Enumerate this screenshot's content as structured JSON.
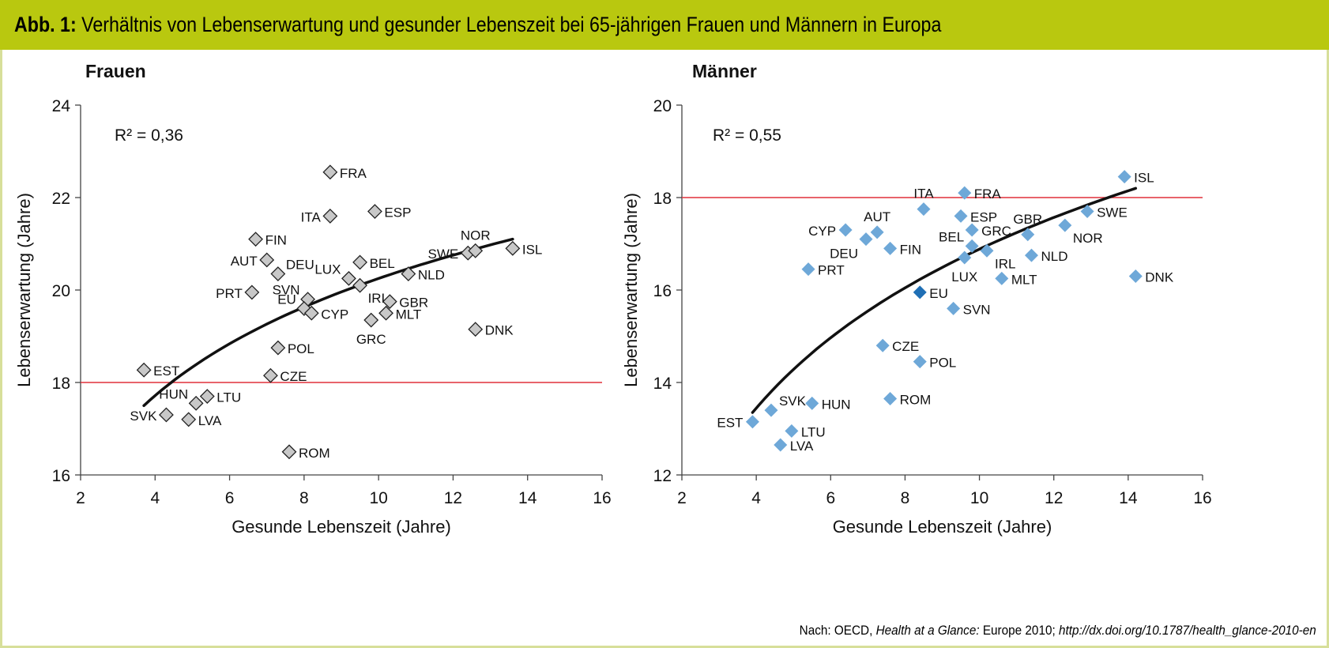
{
  "title": {
    "prefix": "Abb. 1:",
    "text": "Verhältnis von Lebenserwartung und gesunder Lebenszeit bei 65-jährigen Frauen und Männern in Europa"
  },
  "source": {
    "prefix": "Nach: OECD, ",
    "publication": "Health at a Glance:",
    "middle": " Europe 2010; ",
    "link": "http://dx.doi.org/10.1787/health_glance-2010-en"
  },
  "colors": {
    "title_bar": "#b9c80f",
    "frame": "#d7df9a",
    "female_marker": "#c8c8c8",
    "male_marker": "#6ea8d8",
    "eu_male_marker": "#1f6fb5",
    "reference_line": "#e0303a"
  },
  "chart_data": [
    {
      "type": "scatter",
      "title": "Frauen",
      "xlabel": "Gesunde Lebenszeit (Jahre)",
      "ylabel": "Lebenserwartung (Jahre)",
      "xlim": [
        2,
        16
      ],
      "ylim": [
        16,
        24
      ],
      "xticks": [
        2,
        4,
        6,
        8,
        10,
        12,
        14,
        16
      ],
      "yticks": [
        16,
        18,
        20,
        22,
        24
      ],
      "reference_line_y": 18,
      "r2_label": "R² = 0,36",
      "trend": {
        "type": "log",
        "x_range": [
          3.7,
          13.6
        ],
        "points": [
          [
            3.7,
            17.5
          ],
          [
            13.6,
            21.1
          ]
        ]
      },
      "points": [
        {
          "label": "EST",
          "x": 3.7,
          "y": 18.27,
          "label_pos": "right"
        },
        {
          "label": "SVK",
          "x": 4.3,
          "y": 17.3,
          "label_pos": "left"
        },
        {
          "label": "HUN",
          "x": 5.1,
          "y": 17.55,
          "label_pos": "left-up"
        },
        {
          "label": "LTU",
          "x": 5.4,
          "y": 17.7,
          "label_pos": "right"
        },
        {
          "label": "LVA",
          "x": 4.9,
          "y": 17.2,
          "label_pos": "right"
        },
        {
          "label": "FRA",
          "x": 8.7,
          "y": 22.55,
          "label_pos": "right"
        },
        {
          "label": "ITA",
          "x": 8.7,
          "y": 21.6,
          "label_pos": "left"
        },
        {
          "label": "ESP",
          "x": 9.9,
          "y": 21.7,
          "label_pos": "right"
        },
        {
          "label": "FIN",
          "x": 6.7,
          "y": 21.1,
          "label_pos": "right"
        },
        {
          "label": "AUT",
          "x": 7.0,
          "y": 20.65,
          "label_pos": "left"
        },
        {
          "label": "DEU",
          "x": 7.3,
          "y": 20.35,
          "label_pos": "right-up"
        },
        {
          "label": "PRT",
          "x": 6.6,
          "y": 19.95,
          "label_pos": "left"
        },
        {
          "label": "SVN",
          "x": 8.1,
          "y": 19.8,
          "label_pos": "left-up"
        },
        {
          "label": "EU",
          "x": 8.0,
          "y": 19.6,
          "label_pos": "left-up"
        },
        {
          "label": "CYP",
          "x": 8.2,
          "y": 19.5,
          "label_pos": "right"
        },
        {
          "label": "LUX",
          "x": 9.2,
          "y": 20.25,
          "label_pos": "left-up"
        },
        {
          "label": "BEL",
          "x": 9.5,
          "y": 20.6,
          "label_pos": "right"
        },
        {
          "label": "IRL",
          "x": 9.5,
          "y": 20.1,
          "label_pos": "right-down"
        },
        {
          "label": "NLD",
          "x": 10.8,
          "y": 20.35,
          "label_pos": "right"
        },
        {
          "label": "SWE",
          "x": 12.4,
          "y": 20.8,
          "label_pos": "left"
        },
        {
          "label": "NOR",
          "x": 12.6,
          "y": 20.85,
          "label_pos": "up"
        },
        {
          "label": "ISL",
          "x": 13.6,
          "y": 20.9,
          "label_pos": "right"
        },
        {
          "label": "GBR",
          "x": 10.3,
          "y": 19.75,
          "label_pos": "right"
        },
        {
          "label": "MLT",
          "x": 10.2,
          "y": 19.5,
          "label_pos": "right"
        },
        {
          "label": "GRC",
          "x": 9.8,
          "y": 19.35,
          "label_pos": "down"
        },
        {
          "label": "DNK",
          "x": 12.6,
          "y": 19.15,
          "label_pos": "right"
        },
        {
          "label": "POL",
          "x": 7.3,
          "y": 18.75,
          "label_pos": "right"
        },
        {
          "label": "CZE",
          "x": 7.1,
          "y": 18.15,
          "label_pos": "right"
        },
        {
          "label": "ROM",
          "x": 7.6,
          "y": 16.5,
          "label_pos": "right"
        }
      ]
    },
    {
      "type": "scatter",
      "title": "Männer",
      "xlabel": "Gesunde Lebenszeit (Jahre)",
      "ylabel": "Lebenserwartung (Jahre)",
      "xlim": [
        2,
        16
      ],
      "ylim": [
        12,
        20
      ],
      "xticks": [
        2,
        4,
        6,
        8,
        10,
        12,
        14,
        16
      ],
      "yticks": [
        12,
        14,
        16,
        18,
        20
      ],
      "reference_line_y": 18,
      "r2_label": "R² = 0,55",
      "trend": {
        "type": "log",
        "x_range": [
          3.9,
          14.2
        ],
        "points": [
          [
            3.9,
            13.35
          ],
          [
            14.2,
            18.2
          ]
        ]
      },
      "points": [
        {
          "label": "EST",
          "x": 3.9,
          "y": 13.15,
          "label_pos": "left"
        },
        {
          "label": "SVK",
          "x": 4.4,
          "y": 13.4,
          "label_pos": "right-up"
        },
        {
          "label": "HUN",
          "x": 5.5,
          "y": 13.55,
          "label_pos": "right"
        },
        {
          "label": "LTU",
          "x": 4.95,
          "y": 12.95,
          "label_pos": "right"
        },
        {
          "label": "LVA",
          "x": 4.65,
          "y": 12.65,
          "label_pos": "right"
        },
        {
          "label": "ROM",
          "x": 7.6,
          "y": 13.65,
          "label_pos": "right"
        },
        {
          "label": "POL",
          "x": 8.4,
          "y": 14.45,
          "label_pos": "right"
        },
        {
          "label": "CZE",
          "x": 7.4,
          "y": 14.8,
          "label_pos": "right"
        },
        {
          "label": "EU",
          "x": 8.4,
          "y": 15.95,
          "label_pos": "right",
          "highlight": true
        },
        {
          "label": "SVN",
          "x": 9.3,
          "y": 15.6,
          "label_pos": "right"
        },
        {
          "label": "PRT",
          "x": 5.4,
          "y": 16.45,
          "label_pos": "right"
        },
        {
          "label": "CYP",
          "x": 6.4,
          "y": 17.3,
          "label_pos": "left"
        },
        {
          "label": "AUT",
          "x": 7.25,
          "y": 17.25,
          "label_pos": "up"
        },
        {
          "label": "DEU",
          "x": 6.95,
          "y": 17.1,
          "label_pos": "left-down"
        },
        {
          "label": "FIN",
          "x": 7.6,
          "y": 16.9,
          "label_pos": "right"
        },
        {
          "label": "ITA",
          "x": 8.5,
          "y": 17.75,
          "label_pos": "up"
        },
        {
          "label": "FRA",
          "x": 9.6,
          "y": 18.1,
          "label_pos": "right"
        },
        {
          "label": "ESP",
          "x": 9.5,
          "y": 17.6,
          "label_pos": "right"
        },
        {
          "label": "GRC",
          "x": 9.8,
          "y": 17.3,
          "label_pos": "right"
        },
        {
          "label": "BEL",
          "x": 9.8,
          "y": 16.95,
          "label_pos": "left-up"
        },
        {
          "label": "IRL",
          "x": 10.2,
          "y": 16.85,
          "label_pos": "right-down"
        },
        {
          "label": "LUX",
          "x": 9.6,
          "y": 16.7,
          "label_pos": "down"
        },
        {
          "label": "MLT",
          "x": 10.6,
          "y": 16.25,
          "label_pos": "right"
        },
        {
          "label": "GBR",
          "x": 11.3,
          "y": 17.2,
          "label_pos": "up"
        },
        {
          "label": "NLD",
          "x": 11.4,
          "y": 16.75,
          "label_pos": "right"
        },
        {
          "label": "NOR",
          "x": 12.3,
          "y": 17.4,
          "label_pos": "right-down"
        },
        {
          "label": "SWE",
          "x": 12.9,
          "y": 17.7,
          "label_pos": "right"
        },
        {
          "label": "ISL",
          "x": 13.9,
          "y": 18.45,
          "label_pos": "right"
        },
        {
          "label": "DNK",
          "x": 14.2,
          "y": 16.3,
          "label_pos": "right"
        }
      ]
    }
  ]
}
